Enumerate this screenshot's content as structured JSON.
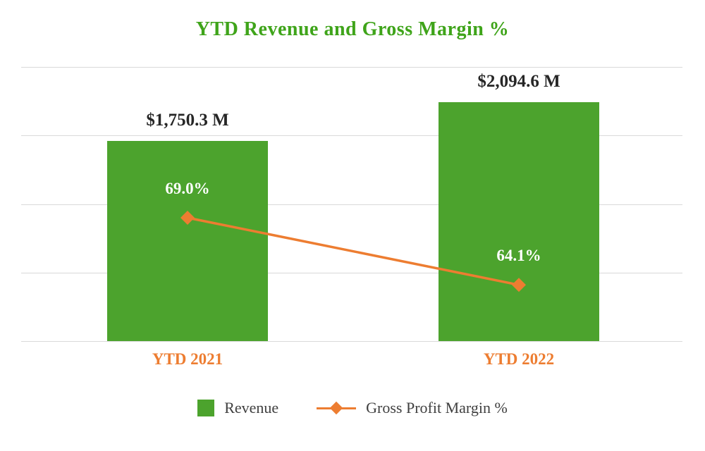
{
  "colors": {
    "title_green": "#3FA41A",
    "bar_green": "#4CA32D",
    "orange": "#ED7D31",
    "value_label": "#262626",
    "pct_label": "#FFFFFF",
    "legend_text": "#404040",
    "gridline": "#D9D9D9",
    "background": "#FFFFFF"
  },
  "chart_data": {
    "type": "combo",
    "title": "YTD Revenue and Gross Margin %",
    "categories": [
      "YTD 2021",
      "YTD 2022"
    ],
    "series": [
      {
        "name": "Revenue",
        "type": "bar",
        "axis": "primary",
        "unit": "$M",
        "values": [
          1750.3,
          2094.6
        ],
        "labels": [
          "$1,750.3 M",
          "$2,094.6 M"
        ]
      },
      {
        "name": "Gross Profit Margin %",
        "type": "line",
        "axis": "secondary",
        "marker": "diamond",
        "values": [
          69.0,
          64.1
        ],
        "labels": [
          "69.0%",
          "64.1%"
        ]
      }
    ],
    "primary_axis": {
      "min": 0,
      "max": 2400,
      "ticks_visible": false
    },
    "secondary_axis": {
      "min": 60,
      "max": 80,
      "ticks_visible": false
    },
    "grid": true,
    "legend_position": "bottom"
  }
}
